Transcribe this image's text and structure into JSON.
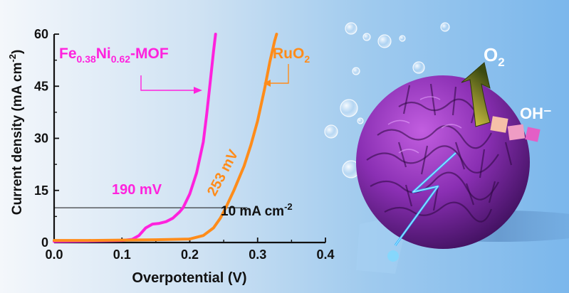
{
  "chart_data": {
    "type": "line",
    "xlabel": "Overpotential (V)",
    "ylabel": "Current density (mA cm⁻²)",
    "xlim": [
      0.0,
      0.4
    ],
    "ylim": [
      0,
      60
    ],
    "x_ticks": [
      "0.0",
      "0.1",
      "0.2",
      "0.3",
      "0.4"
    ],
    "y_ticks": [
      "0",
      "15",
      "30",
      "45",
      "60"
    ],
    "grid": false,
    "reference_line": {
      "y": 10,
      "label": "10 mA cm⁻²"
    },
    "series": [
      {
        "name": "Fe0.38Ni0.62-MOF",
        "color": "#ff22dd",
        "overpotential_label": "190 mV",
        "points": [
          [
            0.0,
            0.3
          ],
          [
            0.05,
            0.4
          ],
          [
            0.1,
            0.6
          ],
          [
            0.115,
            0.9
          ],
          [
            0.125,
            2.0
          ],
          [
            0.135,
            4.2
          ],
          [
            0.145,
            5.3
          ],
          [
            0.155,
            5.5
          ],
          [
            0.165,
            6.0
          ],
          [
            0.175,
            7.0
          ],
          [
            0.185,
            8.8
          ],
          [
            0.19,
            10.0
          ],
          [
            0.2,
            14.0
          ],
          [
            0.21,
            20.0
          ],
          [
            0.22,
            29.0
          ],
          [
            0.225,
            37.0
          ],
          [
            0.23,
            46.0
          ],
          [
            0.235,
            55.0
          ],
          [
            0.238,
            60.0
          ]
        ]
      },
      {
        "name": "RuO2",
        "color": "#ff8c1a",
        "overpotential_label": "253 mV",
        "points": [
          [
            0.0,
            0.6
          ],
          [
            0.05,
            0.6
          ],
          [
            0.1,
            0.7
          ],
          [
            0.15,
            0.8
          ],
          [
            0.2,
            1.0
          ],
          [
            0.22,
            2.0
          ],
          [
            0.235,
            4.2
          ],
          [
            0.245,
            7.0
          ],
          [
            0.253,
            10.0
          ],
          [
            0.265,
            15.0
          ],
          [
            0.28,
            22.0
          ],
          [
            0.29,
            28.0
          ],
          [
            0.3,
            35.0
          ],
          [
            0.31,
            44.0
          ],
          [
            0.318,
            52.0
          ],
          [
            0.325,
            58.0
          ],
          [
            0.328,
            60.0
          ]
        ]
      }
    ]
  },
  "annotations": {
    "mof_label_main": "Fe",
    "mof_label_sub1": "0.38",
    "mof_label_mid": "Ni",
    "mof_label_sub2": "0.62",
    "mof_label_tail": "-MOF",
    "ruo2_label_main": "RuO",
    "ruo2_label_sub": "2",
    "mof_overpotential": "190 mV",
    "ruo2_overpotential": "253 mV",
    "ref_label_main": "10 mA cm",
    "ref_label_sup": "-2"
  },
  "ylabel_parts": {
    "main": "Current density (mA cm",
    "sup": "-2",
    "tail": ")"
  },
  "illustration": {
    "o2_main": "O",
    "o2_sub": "2",
    "oh_label": "OH⁻"
  }
}
